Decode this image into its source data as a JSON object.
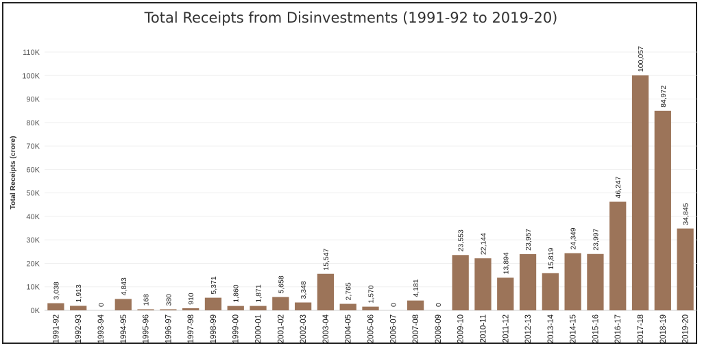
{
  "chart_data": {
    "type": "bar",
    "title": "Total Receipts from Disinvestments (1991-92 to 2019-20)",
    "ylabel": "Total Receipts (crore)",
    "xlabel": "",
    "ylim": [
      0,
      113000
    ],
    "yticks": [
      0,
      10000,
      20000,
      30000,
      40000,
      50000,
      60000,
      70000,
      80000,
      90000,
      100000,
      110000
    ],
    "ytick_labels": [
      "0K",
      "10K",
      "20K",
      "30K",
      "40K",
      "50K",
      "60K",
      "70K",
      "80K",
      "90K",
      "100K",
      "110K"
    ],
    "categories": [
      "1991-92",
      "1992-93",
      "1993-94",
      "1994-95",
      "1995-96",
      "1996-97",
      "1997-98",
      "1998-99",
      "1999-00",
      "2000-01",
      "2001-02",
      "2002-03",
      "2003-04",
      "2004-05",
      "2005-06",
      "2006-07",
      "2007-08",
      "2008-09",
      "2009-10",
      "2010-11",
      "2011-12",
      "2012-13",
      "2013-14",
      "2014-15",
      "2015-16",
      "2016-17",
      "2017-18",
      "2018-19",
      "2019-20"
    ],
    "values": [
      3038,
      1913,
      0,
      4843,
      168,
      380,
      910,
      5371,
      1860,
      1871,
      5658,
      3348,
      15547,
      2765,
      1570,
      0,
      4181,
      0,
      23553,
      22144,
      13894,
      23957,
      15819,
      24349,
      23997,
      46247,
      100057,
      84972,
      34845
    ],
    "labels": [
      "3,038",
      "1,913",
      "0",
      "4,843",
      "168",
      "380",
      "910",
      "5,371",
      "1,860",
      "1,871",
      "5,658",
      "3,348",
      "15,547",
      "2,765",
      "1,570",
      "0",
      "4,181",
      "0",
      "23,553",
      "22,144",
      "13,894",
      "23,957",
      "15,819",
      "24,349",
      "23,997",
      "46,247",
      "100,057",
      "84,972",
      "34,845"
    ],
    "bar_color": "#9c7459",
    "grid": true,
    "legend": "none"
  }
}
